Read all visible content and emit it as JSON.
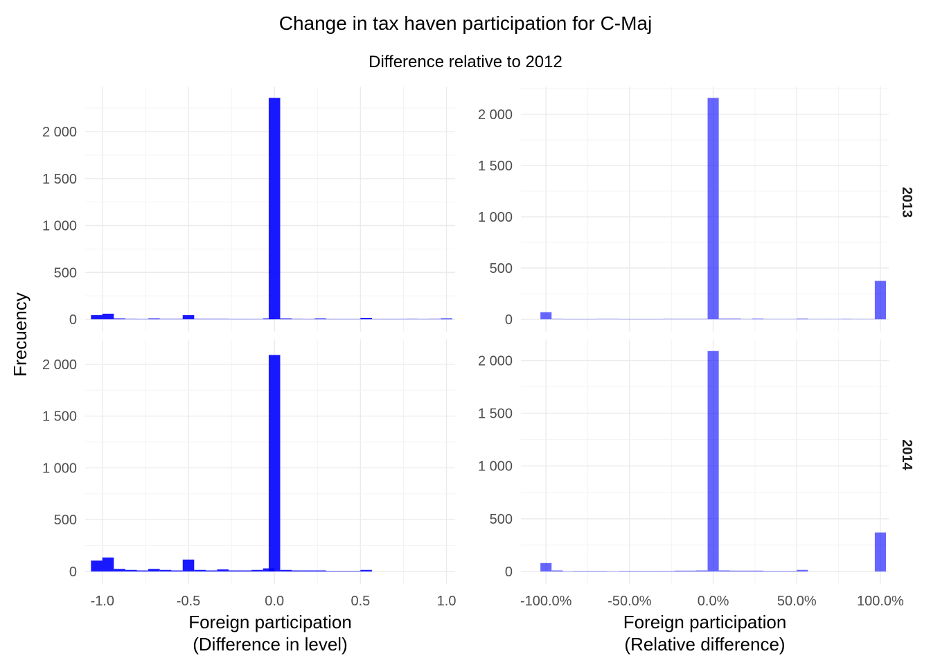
{
  "title": "Change in tax haven participation for C-Maj",
  "subtitle": "Difference relative to 2012",
  "chart_data": {
    "type": "bar",
    "title": "Change in tax haven participation for C-Maj",
    "subtitle": "Difference relative to 2012",
    "ylabel": "Frecuency",
    "rows": [
      "2013",
      "2014"
    ],
    "columns": [
      {
        "xlabel_lines": [
          "Foreign participation",
          "(Difference in level)"
        ],
        "xlim": [
          -1.1,
          1.05
        ],
        "xticks": [
          -1.0,
          -0.5,
          0.0,
          0.5,
          1.0
        ],
        "xtick_labels": [
          "-1.0",
          "-0.5",
          "0.0",
          "0.5",
          "1.0"
        ],
        "bar_color": "#0000ff",
        "bar_opacity": 0.9,
        "bin_width": 0.0667
      },
      {
        "xlabel_lines": [
          "Foreign participation",
          "(Relative difference)"
        ],
        "xlim": [
          -1.15,
          1.05
        ],
        "xticks": [
          -1.0,
          -0.5,
          0.0,
          0.5,
          1.0
        ],
        "xtick_labels": [
          "-100.0%",
          "-50.0%",
          "0.0%",
          "50.0%",
          "100.0%"
        ],
        "bar_color": "#0000ff",
        "bar_opacity": 0.6,
        "bin_width": 0.0667
      }
    ],
    "panels": [
      {
        "row": "2013",
        "column": 0,
        "ylim": [
          0,
          2480
        ],
        "yticks": [
          0,
          500,
          1000,
          1500,
          2000
        ],
        "ytick_labels": [
          "0",
          "500",
          "1 000",
          "1 500",
          "2 000"
        ],
        "series": [
          {
            "x": [
              -1.033,
              -0.967,
              -0.9,
              -0.833,
              -0.767,
              -0.7,
              -0.633,
              -0.567,
              -0.5,
              -0.433,
              -0.367,
              -0.3,
              -0.233,
              -0.167,
              -0.1,
              -0.033,
              0.0,
              0.067,
              0.133,
              0.2,
              0.267,
              0.333,
              0.4,
              0.467,
              0.533,
              0.6,
              0.667,
              0.733,
              0.8,
              0.867,
              0.933,
              1.0
            ],
            "values": [
              45,
              60,
              10,
              5,
              3,
              10,
              5,
              5,
              45,
              5,
              5,
              5,
              3,
              3,
              3,
              10,
              2360,
              10,
              5,
              3,
              10,
              3,
              3,
              3,
              15,
              3,
              3,
              3,
              5,
              3,
              5,
              10
            ]
          }
        ]
      },
      {
        "row": "2013",
        "column": 1,
        "ylim": [
          0,
          2270
        ],
        "yticks": [
          0,
          500,
          1000,
          1500,
          2000
        ],
        "ytick_labels": [
          "0",
          "500",
          "1 000",
          "1 500",
          "2 000"
        ],
        "series": [
          {
            "x": [
              -1.0,
              -0.933,
              -0.867,
              -0.8,
              -0.733,
              -0.667,
              -0.6,
              -0.533,
              -0.467,
              -0.4,
              -0.333,
              -0.267,
              -0.2,
              -0.133,
              -0.067,
              0.0,
              0.067,
              0.133,
              0.2,
              0.267,
              0.333,
              0.4,
              0.467,
              0.533,
              0.6,
              0.667,
              0.733,
              0.8,
              0.867,
              0.933,
              1.0
            ],
            "values": [
              70,
              5,
              2,
              2,
              2,
              5,
              5,
              2,
              2,
              2,
              2,
              5,
              5,
              5,
              5,
              2160,
              8,
              8,
              3,
              8,
              3,
              3,
              3,
              8,
              3,
              3,
              3,
              5,
              3,
              3,
              375
            ]
          }
        ]
      },
      {
        "row": "2014",
        "column": 0,
        "ylim": [
          0,
          2240
        ],
        "yticks": [
          0,
          500,
          1000,
          1500,
          2000
        ],
        "ytick_labels": [
          "0",
          "500",
          "1 000",
          "1 500",
          "2 000"
        ],
        "series": [
          {
            "x": [
              -1.033,
              -0.967,
              -0.9,
              -0.833,
              -0.767,
              -0.7,
              -0.633,
              -0.567,
              -0.5,
              -0.433,
              -0.367,
              -0.3,
              -0.233,
              -0.167,
              -0.1,
              -0.033,
              0.0,
              0.067,
              0.133,
              0.2,
              0.267,
              0.333,
              0.4,
              0.467,
              0.533
            ],
            "values": [
              105,
              135,
              25,
              15,
              10,
              25,
              15,
              10,
              115,
              15,
              10,
              20,
              10,
              10,
              15,
              30,
              2090,
              15,
              10,
              10,
              10,
              5,
              5,
              5,
              15
            ]
          }
        ]
      },
      {
        "row": "2014",
        "column": 1,
        "ylim": [
          0,
          2200
        ],
        "yticks": [
          0,
          500,
          1000,
          1500,
          2000
        ],
        "ytick_labels": [
          "0",
          "500",
          "1 000",
          "1 500",
          "2 000"
        ],
        "series": [
          {
            "x": [
              -1.0,
              -0.933,
              -0.867,
              -0.8,
              -0.733,
              -0.667,
              -0.6,
              -0.533,
              -0.467,
              -0.4,
              -0.333,
              -0.267,
              -0.2,
              -0.133,
              -0.067,
              0.0,
              0.067,
              0.133,
              0.2,
              0.267,
              0.333,
              0.4,
              0.467,
              0.533,
              1.0
            ],
            "values": [
              80,
              10,
              2,
              5,
              5,
              5,
              2,
              5,
              5,
              5,
              5,
              5,
              8,
              8,
              10,
              2090,
              10,
              8,
              8,
              8,
              5,
              5,
              5,
              15,
              370
            ]
          }
        ]
      }
    ],
    "grid": true,
    "legend": "none"
  }
}
